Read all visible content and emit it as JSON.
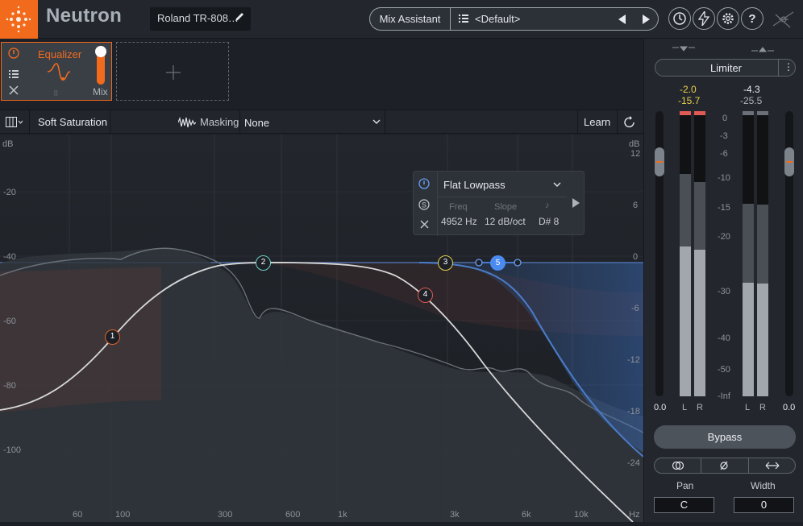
{
  "topbar": {
    "app_name": "Neutron",
    "instance_name": "Roland TR-808…",
    "mix_assistant_label": "Mix Assistant",
    "preset_name": "<Default>"
  },
  "modules": {
    "equalizer_label": "Equalizer",
    "mix_label": "Mix"
  },
  "toolbar": {
    "mode_label": "Soft Saturation",
    "masking_label": "Masking",
    "masking_value": "None",
    "learn_label": "Learn"
  },
  "plot": {
    "left_axis_unit": "dB",
    "left_axis_ticks": [
      "-20",
      "-40",
      "-60",
      "-80",
      "-100"
    ],
    "right_axis_unit": "dB",
    "right_axis_ticks": [
      "12",
      "6",
      "0",
      "-6",
      "-12",
      "-18",
      "-24"
    ],
    "freq_ticks": [
      "60",
      "100",
      "300",
      "600",
      "1k",
      "3k",
      "6k",
      "10k"
    ],
    "freq_unit": "Hz",
    "nodes": [
      {
        "label": "1",
        "color": "#e0652a"
      },
      {
        "label": "2",
        "color": "#6fd1c4"
      },
      {
        "label": "3",
        "color": "#e6d04a"
      },
      {
        "label": "4",
        "color": "#e05a55"
      },
      {
        "label": "5",
        "color": "#4b8bf0"
      }
    ],
    "eq_curve_color": "#d8d8d8",
    "selected_band_color": "#4b7cc8"
  },
  "band_popup": {
    "filter_type": "Flat Lowpass",
    "freq_label": "Freq",
    "freq_value": "4952 Hz",
    "slope_label": "Slope",
    "slope_value": "12  dB/oct",
    "note_value": "D# 8"
  },
  "right_panel": {
    "limiter_label": "Limiter",
    "in_peak_value": "-2.0",
    "in_rms_value": "-15.7",
    "out_peak_value": "-4.3",
    "out_rms_value": "-25.5",
    "scale_ticks": [
      "0",
      "-3",
      "-6",
      "-10",
      "-15",
      "-20",
      "-30",
      "-40",
      "-50",
      "-Inf"
    ],
    "in_gain_value": "0.0",
    "out_gain_value": "0.0",
    "left_channel_label": "L",
    "right_channel_label": "R",
    "left_channel_label_2": "L",
    "right_channel_label_2": "R",
    "bypass_label": "Bypass",
    "pan_label": "Pan",
    "pan_value": "C",
    "width_label": "Width",
    "width_value": "0",
    "accent_color": "#f26b1d"
  }
}
